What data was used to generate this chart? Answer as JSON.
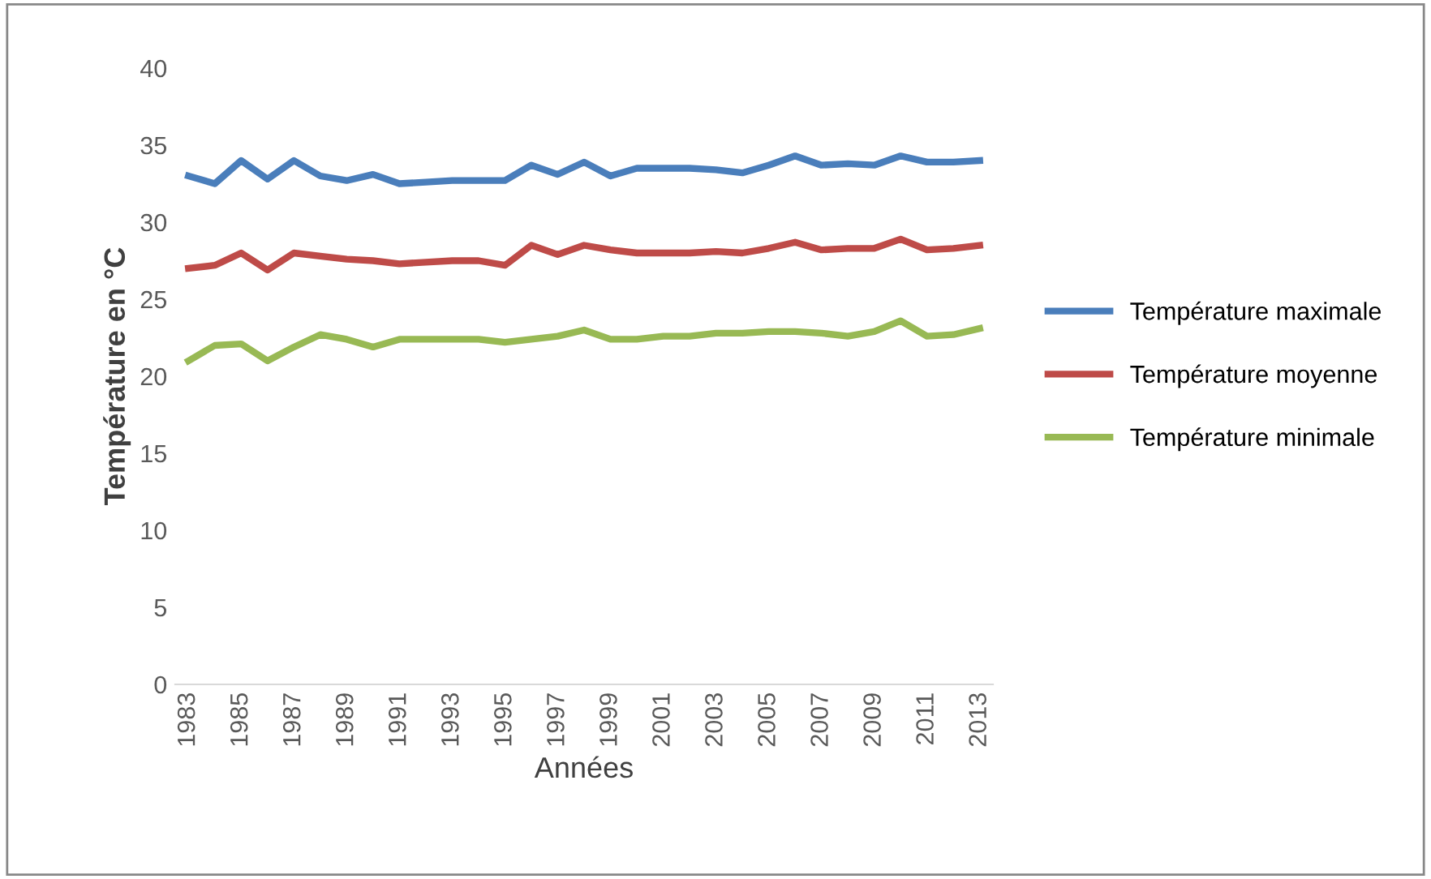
{
  "chart_data": {
    "type": "line",
    "xlabel": "Années",
    "ylabel": "Température en °C",
    "categories": [
      "1983",
      null,
      "1985",
      null,
      "1987",
      null,
      "1989",
      null,
      "1991",
      null,
      "1993",
      null,
      "1995",
      null,
      "1997",
      null,
      "1999",
      null,
      "2001",
      null,
      "2003",
      null,
      "2005",
      null,
      "2007",
      null,
      "2009",
      null,
      "2011",
      null,
      "2013"
    ],
    "series": [
      {
        "name": "Température maximale",
        "color": "#4a7ebb",
        "values": [
          33,
          32.5,
          34,
          32.8,
          34,
          33,
          32.7,
          33.1,
          32.5,
          32.6,
          32.7,
          32.7,
          32.7,
          33.7,
          33.1,
          33.9,
          33,
          33.5,
          33.5,
          33.5,
          33.4,
          33.2,
          33.7,
          34.3,
          33.7,
          33.8,
          33.7,
          34.3,
          33.9,
          33.9,
          34
        ]
      },
      {
        "name": "Température moyenne",
        "color": "#be4b48",
        "values": [
          27,
          27.2,
          28,
          26.9,
          28,
          27.8,
          27.6,
          27.5,
          27.3,
          27.4,
          27.5,
          27.5,
          27.2,
          28.5,
          27.9,
          28.5,
          28.2,
          28,
          28,
          28,
          28.1,
          28,
          28.3,
          28.7,
          28.2,
          28.3,
          28.3,
          28.9,
          28.2,
          28.3,
          28.5
        ]
      },
      {
        "name": "Température minimale",
        "color": "#98b954",
        "values": [
          21,
          22,
          22.1,
          21,
          21.9,
          22.7,
          22.4,
          21.9,
          22.4,
          22.4,
          22.4,
          22.4,
          22.2,
          22.4,
          22.6,
          23,
          22.4,
          22.4,
          22.6,
          22.6,
          22.8,
          22.8,
          22.9,
          22.9,
          22.8,
          22.6,
          22.9,
          23.6,
          22.6,
          22.7,
          23.1
        ]
      }
    ],
    "ylim": [
      0,
      40
    ],
    "yticks": [
      0,
      5,
      10,
      15,
      20,
      25,
      30,
      35,
      40
    ],
    "grid": false,
    "legend": "right",
    "marker": "none",
    "line_style": "solid"
  }
}
